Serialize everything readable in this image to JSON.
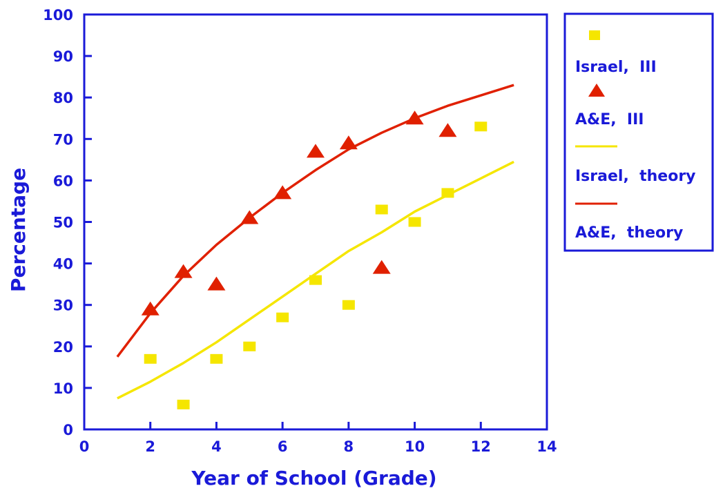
{
  "chart_data": {
    "type": "scatter",
    "title": "",
    "xlabel": "Year of School (Grade)",
    "ylabel": "Percentage",
    "xlim": [
      0,
      14
    ],
    "ylim": [
      0,
      100
    ],
    "xticks": [
      "0",
      "2",
      "4",
      "6",
      "8",
      "10",
      "12",
      "14"
    ],
    "yticks": [
      "0",
      "10",
      "20",
      "30",
      "40",
      "50",
      "60",
      "70",
      "80",
      "90",
      "100"
    ],
    "grid": false,
    "legend_position": "right",
    "series": [
      {
        "name": "Israel,  III",
        "kind": "points",
        "marker": "square",
        "color": "#f5e600",
        "x": [
          2,
          3,
          4,
          5,
          6,
          7,
          8,
          9,
          10,
          11,
          12
        ],
        "y": [
          17,
          6,
          17,
          20,
          27,
          36,
          30,
          53,
          50,
          57,
          73
        ]
      },
      {
        "name": "A&E,  III",
        "kind": "points",
        "marker": "triangle",
        "color": "#e02000",
        "x": [
          2,
          3,
          4,
          5,
          6,
          7,
          8,
          9,
          10,
          11
        ],
        "y": [
          29,
          38,
          35,
          51,
          57,
          67,
          69,
          39,
          75,
          72
        ]
      },
      {
        "name": "Israel,  theory",
        "kind": "line",
        "color": "#f5e600",
        "x": [
          1,
          2,
          3,
          4,
          5,
          6,
          7,
          8,
          9,
          10,
          11,
          12,
          13
        ],
        "y": [
          7.5,
          11.5,
          16,
          21,
          26.5,
          32,
          37.5,
          43,
          47.5,
          52.5,
          56.5,
          60.5,
          64.5
        ]
      },
      {
        "name": "A&E,  theory",
        "kind": "line",
        "color": "#e02000",
        "x": [
          1,
          2,
          3,
          4,
          5,
          6,
          7,
          8,
          9,
          10,
          11,
          12,
          13
        ],
        "y": [
          17.5,
          28,
          37,
          44.5,
          51,
          57,
          62.5,
          67.5,
          71.5,
          75,
          78,
          80.5,
          83
        ]
      }
    ]
  },
  "colors": {
    "axis": "#1a1ad8",
    "text": "#1a1ad8"
  }
}
